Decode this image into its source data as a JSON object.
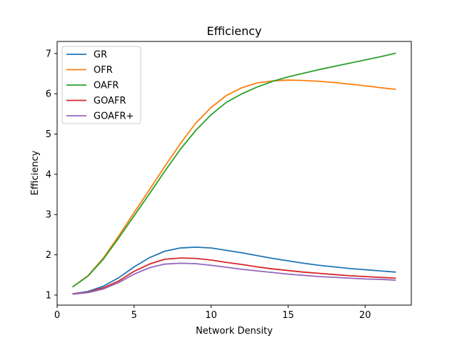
{
  "chart_data": {
    "type": "line",
    "title": "Efficiency",
    "xlabel": "Network Density",
    "ylabel": "Efficiency",
    "xlim": [
      0,
      23
    ],
    "ylim": [
      0.75,
      7.3
    ],
    "xticks": [
      0,
      5,
      10,
      15,
      20
    ],
    "yticks": [
      1,
      2,
      3,
      4,
      5,
      6,
      7
    ],
    "grid": false,
    "legend_position": "top-left",
    "x": [
      1,
      2,
      3,
      4,
      5,
      6,
      7,
      8,
      9,
      10,
      11,
      12,
      13,
      14,
      15,
      16,
      17,
      18,
      19,
      20,
      21,
      22
    ],
    "series": [
      {
        "name": "GR",
        "color": "#1f77b4",
        "values": [
          1.03,
          1.09,
          1.22,
          1.43,
          1.7,
          1.93,
          2.09,
          2.17,
          2.19,
          2.17,
          2.11,
          2.05,
          1.98,
          1.91,
          1.85,
          1.79,
          1.74,
          1.7,
          1.66,
          1.63,
          1.6,
          1.57
        ]
      },
      {
        "name": "OFR",
        "color": "#ff7f0e",
        "values": [
          1.2,
          1.48,
          1.92,
          2.47,
          3.05,
          3.62,
          4.2,
          4.76,
          5.27,
          5.66,
          5.96,
          6.15,
          6.27,
          6.32,
          6.34,
          6.33,
          6.31,
          6.28,
          6.24,
          6.2,
          6.15,
          6.11
        ]
      },
      {
        "name": "OAFR",
        "color": "#2ca02c",
        "values": [
          1.2,
          1.47,
          1.89,
          2.42,
          2.97,
          3.52,
          4.08,
          4.62,
          5.09,
          5.48,
          5.79,
          6.0,
          6.17,
          6.31,
          6.42,
          6.51,
          6.6,
          6.68,
          6.76,
          6.84,
          6.92,
          7.01
        ]
      },
      {
        "name": "GOAFR",
        "color": "#d62728",
        "values": [
          1.03,
          1.07,
          1.18,
          1.35,
          1.59,
          1.77,
          1.89,
          1.92,
          1.91,
          1.87,
          1.81,
          1.76,
          1.7,
          1.65,
          1.61,
          1.57,
          1.54,
          1.51,
          1.48,
          1.46,
          1.44,
          1.42
        ]
      },
      {
        "name": "GOAFR+",
        "color": "#9467bd",
        "values": [
          1.02,
          1.06,
          1.15,
          1.31,
          1.52,
          1.68,
          1.77,
          1.79,
          1.78,
          1.74,
          1.69,
          1.64,
          1.6,
          1.56,
          1.52,
          1.49,
          1.46,
          1.44,
          1.42,
          1.4,
          1.39,
          1.37
        ]
      }
    ]
  }
}
